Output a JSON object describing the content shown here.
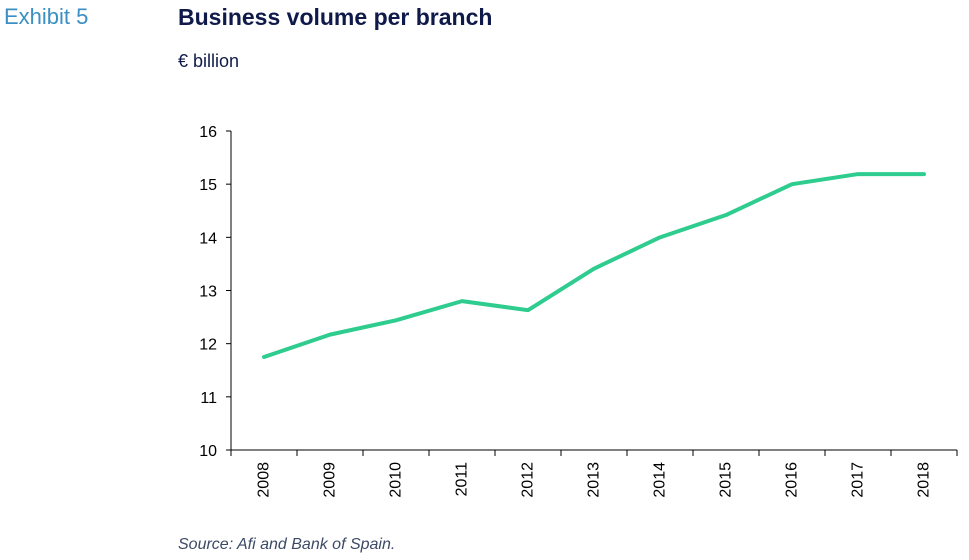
{
  "header": {
    "exhibit": "Exhibit 5",
    "title": "Business volume per branch",
    "unit": "€ billion"
  },
  "footer": {
    "source": "Source: Afi and Bank of Spain."
  },
  "colors": {
    "line": "#2ecc8e",
    "axis": "#000000",
    "title": "#0f1a4a",
    "exhibit": "#3b8fc2"
  },
  "chart_data": {
    "type": "line",
    "title": "Business volume per branch",
    "ylabel": "€ billion",
    "xlabel": "",
    "categories": [
      "2008",
      "2009",
      "2010",
      "2011",
      "2012",
      "2013",
      "2014",
      "2015",
      "2016",
      "2017",
      "2018"
    ],
    "series": [
      {
        "values": [
          11.75,
          12.17,
          12.44,
          12.8,
          12.63,
          13.41,
          14.0,
          14.42,
          15.0,
          15.19,
          15.19
        ]
      }
    ],
    "ylim": [
      10,
      16
    ],
    "yticks": [
      10,
      11,
      12,
      13,
      14,
      15,
      16
    ],
    "grid": false,
    "legend": "none"
  }
}
